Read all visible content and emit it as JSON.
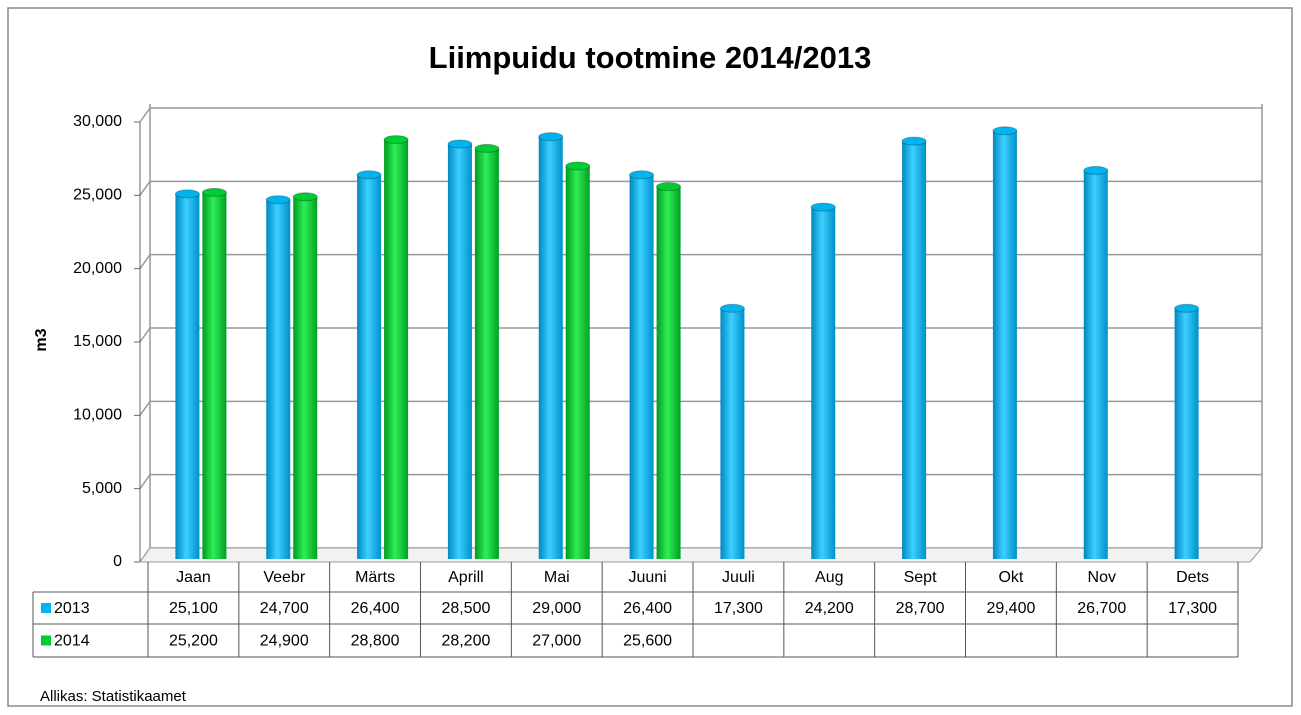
{
  "chart_data": {
    "type": "bar",
    "title": "Liimpuidu tootmine 2014/2013",
    "y_label": "m3",
    "source": "Allikas: Statistikaamet",
    "categories": [
      "Jaan",
      "Veebr",
      "Märts",
      "Aprill",
      "Mai",
      "Juuni",
      "Juuli",
      "Aug",
      "Sept",
      "Okt",
      "Nov",
      "Dets"
    ],
    "series": [
      {
        "name": "2013",
        "color": "#00b4ef",
        "values": [
          25100,
          24700,
          26400,
          28500,
          29000,
          26400,
          17300,
          24200,
          28700,
          29400,
          26700,
          17300
        ],
        "value_labels": [
          "25,100",
          "24,700",
          "26,400",
          "28,500",
          "29,000",
          "26,400",
          "17,300",
          "24,200",
          "28,700",
          "29,400",
          "26,700",
          "17,300"
        ]
      },
      {
        "name": "2014",
        "color": "#00cc33",
        "values": [
          25200,
          24900,
          28800,
          28200,
          27000,
          25600,
          null,
          null,
          null,
          null,
          null,
          null
        ],
        "value_labels": [
          "25,200",
          "24,900",
          "28,800",
          "28,200",
          "27,000",
          "25,600",
          null,
          null,
          null,
          null,
          null,
          null
        ]
      }
    ],
    "ylim": [
      0,
      30000
    ],
    "yticks": [
      0,
      {
        "value": 5000,
        "label": "5,000"
      },
      {
        "value": 10000,
        "label": "10,000"
      },
      {
        "value": 15000,
        "label": "15,000"
      },
      {
        "value": 20000,
        "label": "20,000"
      },
      {
        "value": 25000,
        "label": "25,000"
      },
      {
        "value": 30000,
        "label": "30,000"
      }
    ],
    "grid": true
  }
}
